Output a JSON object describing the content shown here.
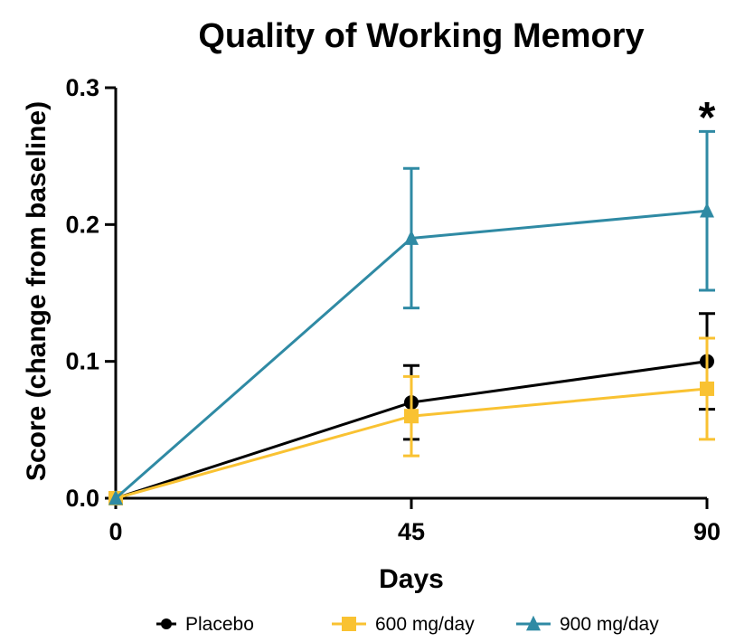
{
  "chart_data": {
    "type": "line",
    "title": "Quality of Working Memory",
    "xlabel": "Days",
    "ylabel": "Score  (change from baseline)",
    "x": [
      0,
      45,
      90
    ],
    "xticks": [
      "0",
      "45",
      "90"
    ],
    "ylim": [
      0,
      0.3
    ],
    "yticks": [
      "0.0",
      "0.1",
      "0.2",
      "0.3"
    ],
    "grid": false,
    "legend_position": "bottom",
    "series": [
      {
        "name": "Placebo",
        "color": "#000000",
        "marker": "circle",
        "values": [
          0,
          0.07,
          0.1
        ],
        "error": [
          0,
          0.027,
          0.035
        ]
      },
      {
        "name": "600 mg/day",
        "color": "#f9c232",
        "marker": "square",
        "values": [
          0,
          0.06,
          0.08
        ],
        "error": [
          0,
          0.029,
          0.037
        ]
      },
      {
        "name": "900 mg/day",
        "color": "#2f8aa4",
        "marker": "triangle",
        "values": [
          0,
          0.19,
          0.21
        ],
        "error": [
          0,
          0.051,
          0.058
        ]
      }
    ],
    "annotations": [
      {
        "text": "*",
        "x": 90,
        "y": 0.29
      }
    ]
  }
}
